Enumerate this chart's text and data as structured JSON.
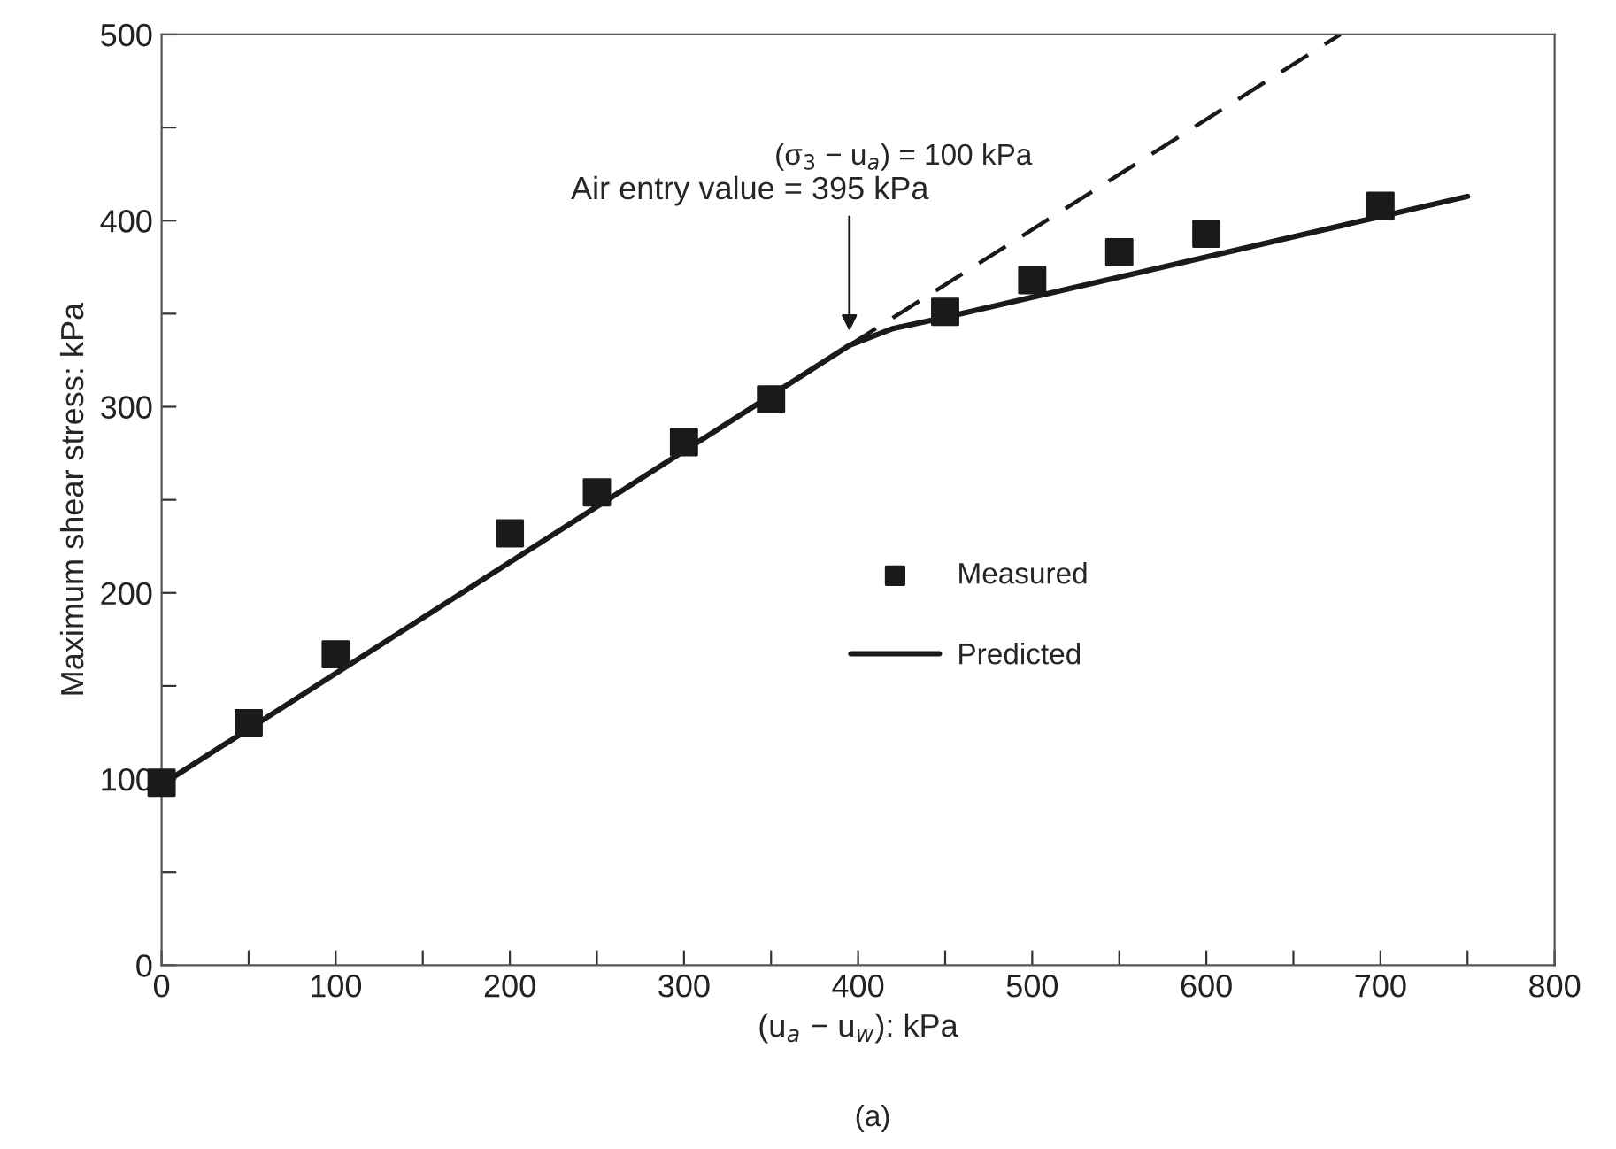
{
  "chart_data": {
    "type": "line",
    "xlabel": "(u$_{a}$ − u$_{w}$): kPa",
    "ylabel": "Maximum shear stress: kPa",
    "series": [
      {
        "name": "Measured",
        "type": "scatter",
        "color": "#1a1a1a",
        "marker": "square",
        "x": [
          0,
          50,
          100,
          200,
          250,
          300,
          350,
          450,
          500,
          550,
          600,
          700
        ],
        "values": [
          98,
          130,
          167,
          232,
          254,
          281,
          304,
          351,
          368,
          383,
          393,
          408
        ]
      },
      {
        "name": "Predicted",
        "color": "#1a1a1a",
        "line_style": "solid",
        "x": [
          0,
          395,
          420,
          450,
          750
        ],
        "values": [
          97,
          333,
          342,
          348,
          413
        ]
      },
      {
        "color": "#1a1a1a",
        "line_style": "dashed",
        "x": [
          395,
          677
        ],
        "values": [
          333,
          500
        ]
      }
    ],
    "xlim": [
      0,
      800
    ],
    "ylim": [
      0,
      500
    ],
    "xticks": [
      0,
      {
        "value": 50,
        "label": null
      },
      100,
      {
        "value": 150,
        "label": null
      },
      200,
      {
        "value": 250,
        "label": null
      },
      300,
      {
        "value": 350,
        "label": null
      },
      400,
      {
        "value": 450,
        "label": null
      },
      500,
      {
        "value": 550,
        "label": null
      },
      600,
      {
        "value": 650,
        "label": null
      },
      700,
      {
        "value": 750,
        "label": null
      },
      800
    ],
    "yticks": [
      0,
      {
        "value": 50,
        "label": null
      },
      100,
      {
        "value": 150,
        "label": null
      },
      200,
      {
        "value": 250,
        "label": null
      },
      300,
      {
        "value": 350,
        "label": null
      },
      400,
      {
        "value": 450,
        "label": null
      },
      500
    ],
    "annotations": [
      {
        "text": "Air entry value = 395 kPa",
        "x": 395,
        "y": 338
      },
      "(σ$_{3}$ − u$_{a}$) = 100 kPa",
      "(a)"
    ],
    "legend": "center",
    "grid": false
  }
}
